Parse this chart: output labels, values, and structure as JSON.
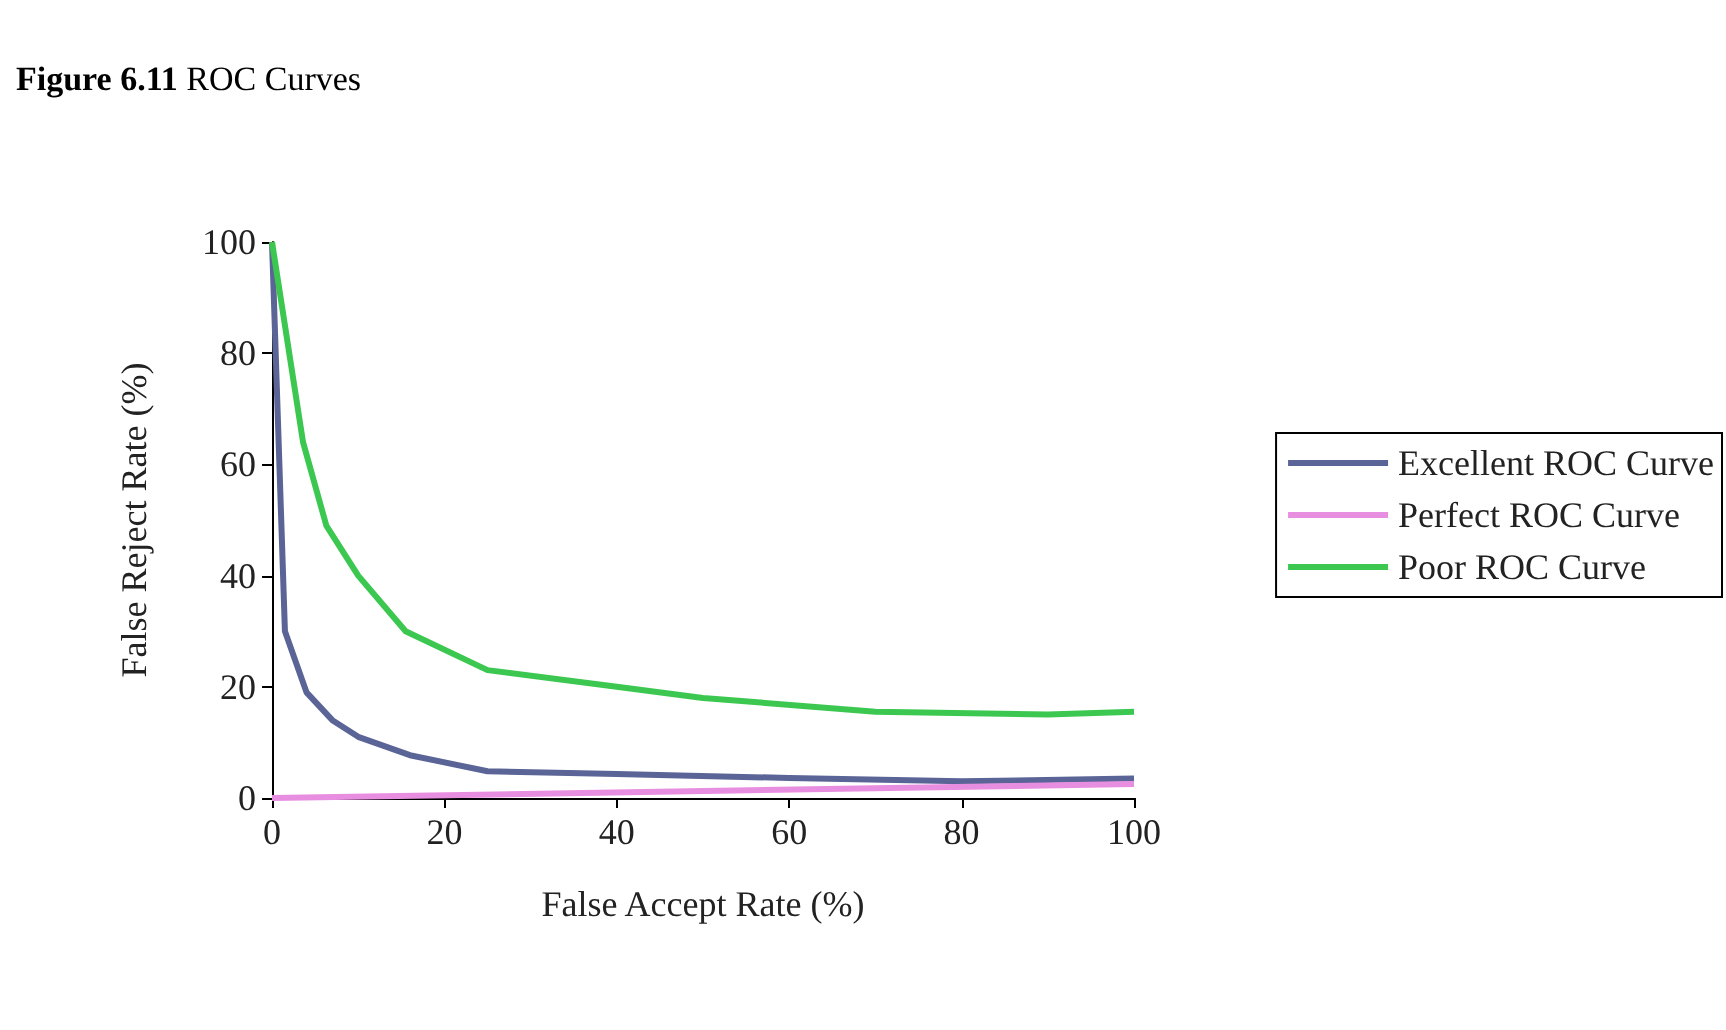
{
  "chart_data": {
    "type": "line",
    "title": "Figure 6.11 ROC Curves",
    "xlabel": "False Accept Rate (%)",
    "ylabel": "False Reject Rate (%)",
    "xlim": [
      0,
      100
    ],
    "xticks": [
      0,
      20,
      40,
      60,
      80,
      100
    ],
    "ylim": [
      0,
      100
    ],
    "yticks": [
      0,
      20,
      40,
      60,
      80,
      100
    ],
    "grid": false,
    "legend": "right",
    "marker": "none",
    "series": [
      {
        "name": "Excellent ROC Curve",
        "color": "#5a6496",
        "x": [
          0,
          1.5,
          4,
          7,
          10,
          16,
          25,
          40,
          60,
          80,
          100
        ],
        "values": [
          100,
          30,
          19,
          14,
          11,
          7.7,
          4.8,
          4.3,
          3.6,
          3,
          3.5
        ]
      },
      {
        "name": "Perfect ROC Curve",
        "color": "#e88ee0",
        "x": [
          0,
          100
        ],
        "values": [
          0,
          2.5
        ]
      },
      {
        "name": "Poor ROC Curve",
        "color": "#3cc850",
        "x": [
          0,
          3.6,
          6.3,
          10,
          15.5,
          25,
          40,
          50,
          70,
          90,
          100
        ],
        "values": [
          100,
          64,
          49,
          40,
          30,
          23,
          20,
          18,
          15.5,
          15,
          15.5
        ]
      }
    ]
  }
}
